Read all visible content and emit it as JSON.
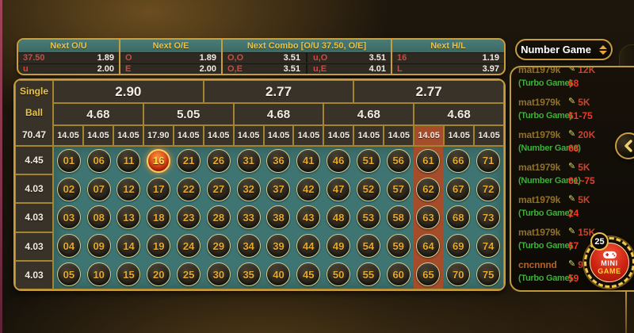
{
  "colors": {
    "gold_border": "#c79d3d",
    "teal_header": "#416f6b",
    "teal_field": "#3e7471",
    "red_label": "#c94c43",
    "red_column": "#a54c2b",
    "ball_text": "#e6a82c",
    "selected_ball_red": "#d8431a",
    "green_game": "#3fae3b",
    "red_pick": "#ee392b",
    "amount_red": "#c64531",
    "gold_text": "#e9c34a"
  },
  "odds_header": {
    "groups": [
      {
        "title": "Next O/U",
        "rows": [
          {
            "cells": [
              {
                "label": "37.50",
                "value": "1.89"
              }
            ]
          },
          {
            "cells": [
              {
                "label": "u",
                "value": "2.00"
              }
            ]
          }
        ]
      },
      {
        "title": "Next O/E",
        "rows": [
          {
            "cells": [
              {
                "label": "O",
                "value": "1.89"
              }
            ]
          },
          {
            "cells": [
              {
                "label": "E",
                "value": "2.00"
              }
            ]
          }
        ]
      },
      {
        "title": "Next Combo [O/U 37.50, O/E]",
        "rows": [
          {
            "cells": [
              {
                "label": "O,O",
                "value": "3.51"
              },
              {
                "label": "u,O",
                "value": "3.51"
              }
            ]
          },
          {
            "cells": [
              {
                "label": "O,E",
                "value": "3.51"
              },
              {
                "label": "u,E",
                "value": "4.01"
              }
            ]
          }
        ]
      },
      {
        "title": "Next H/L",
        "rows": [
          {
            "cells": [
              {
                "label": "16",
                "value": "1.19"
              }
            ]
          },
          {
            "cells": [
              {
                "label": "L",
                "value": "3.97"
              }
            ]
          }
        ]
      }
    ]
  },
  "board": {
    "side_label": {
      "line1": "Single",
      "line2": "Ball",
      "value": "70.47"
    },
    "row_odds": [
      "4.45",
      "4.03",
      "4.03",
      "4.03",
      "4.03"
    ],
    "tier1": [
      {
        "label": "2.90",
        "span": 5
      },
      {
        "label": "2.77",
        "span": 5
      },
      {
        "label": "2.77",
        "span": 5
      }
    ],
    "tier2": [
      {
        "label": "4.68",
        "span": 3
      },
      {
        "label": "5.05",
        "span": 3
      },
      {
        "label": "4.68",
        "span": 3
      },
      {
        "label": "4.68",
        "span": 3
      },
      {
        "label": "4.68",
        "span": 3
      }
    ],
    "tier3": [
      "14.05",
      "14.05",
      "14.05",
      "17.90",
      "14.05",
      "14.05",
      "14.05",
      "14.05",
      "14.05",
      "14.05",
      "14.05",
      "14.05",
      "14.05",
      "14.05",
      "14.05"
    ],
    "tier3_highlight_index": 12,
    "highlighted_column_index": 12,
    "selected_ball": "16",
    "balls": [
      "01",
      "02",
      "03",
      "04",
      "05",
      "06",
      "07",
      "08",
      "09",
      "10",
      "11",
      "12",
      "13",
      "14",
      "15",
      "16",
      "17",
      "18",
      "19",
      "20",
      "21",
      "22",
      "23",
      "24",
      "25",
      "26",
      "27",
      "28",
      "29",
      "30",
      "31",
      "32",
      "33",
      "34",
      "35",
      "36",
      "37",
      "38",
      "39",
      "40",
      "41",
      "42",
      "43",
      "44",
      "45",
      "46",
      "47",
      "48",
      "49",
      "50",
      "51",
      "52",
      "53",
      "54",
      "55",
      "56",
      "57",
      "58",
      "59",
      "60",
      "61",
      "62",
      "63",
      "64",
      "65",
      "66",
      "67",
      "68",
      "69",
      "70",
      "71",
      "72",
      "73",
      "74",
      "75"
    ]
  },
  "sidebar": {
    "dropdown": {
      "label": "Number Game"
    },
    "bets": [
      {
        "user": "mat1979k",
        "amount": "12K",
        "game": "(Turbo Game)",
        "pick": "68",
        "clipped": true
      },
      {
        "user": "mat1979k",
        "amount": "5K",
        "game": "(Turbo Game)",
        "pick": "61-75"
      },
      {
        "user": "mat1979k",
        "amount": "20K",
        "game": "(Number Game)",
        "pick": "68"
      },
      {
        "user": "mat1979k",
        "amount": "5K",
        "game": "(Number Game)",
        "pick": "61~75"
      },
      {
        "user": "mat1979k",
        "amount": "5K",
        "game": "(Turbo Game)",
        "pick": "24"
      },
      {
        "user": "mat1979k",
        "amount": "15K",
        "game": "(Turbo Game)",
        "pick": "67"
      },
      {
        "user": "cncnnnd",
        "amount": "9K",
        "game": "(Turbo Game)",
        "pick": "59"
      }
    ],
    "mini_game": {
      "count": "25",
      "line1": "MINI",
      "line2": "GAME"
    }
  }
}
